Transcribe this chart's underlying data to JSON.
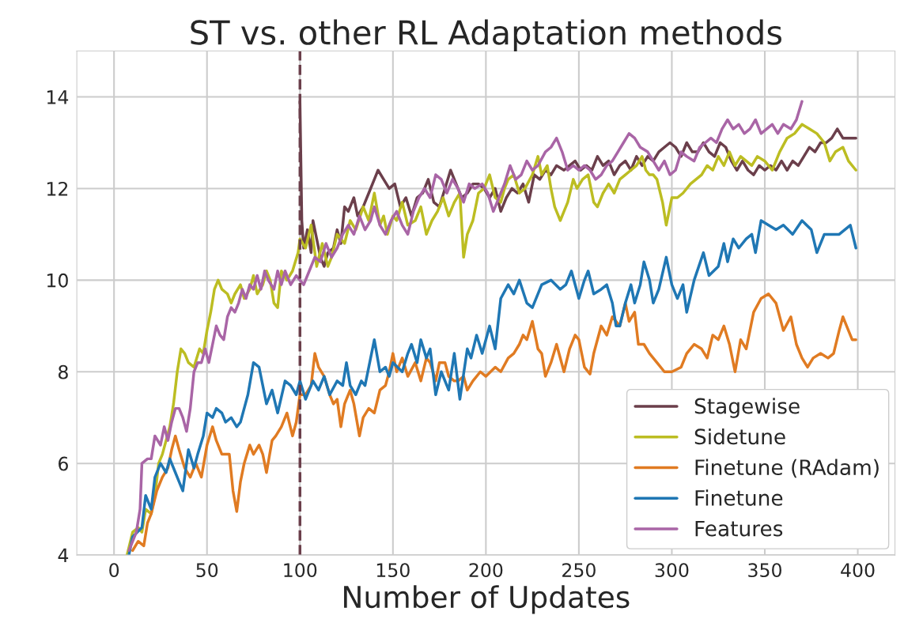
{
  "chart_data": {
    "type": "line",
    "title": "ST vs. other RL Adaptation methods",
    "xlabel": "Number of Updates",
    "xlim": [
      -20,
      420
    ],
    "ylim": [
      4,
      15
    ],
    "xticks": [
      0,
      50,
      100,
      150,
      200,
      250,
      300,
      350,
      400
    ],
    "yticks": [
      4,
      6,
      8,
      10,
      12,
      14
    ],
    "grid": true,
    "legend": "bottom right",
    "line_style": "solid",
    "marker": "none",
    "ref_lines": [
      {
        "axis": "x",
        "value": 100,
        "color": "#6b3f4b",
        "line_style": "dashed"
      }
    ],
    "series": [
      {
        "name": "Stagewise",
        "color": "#6b3f4b",
        "x": [
          100,
          101,
          102,
          104,
          106,
          107,
          109,
          111,
          113,
          115,
          118,
          120,
          122,
          124,
          126,
          129,
          131,
          134,
          137,
          140,
          142,
          145,
          148,
          151,
          154,
          157,
          160,
          163,
          166,
          169,
          172,
          175,
          178,
          181,
          184,
          187,
          190,
          193,
          196,
          199,
          202,
          205,
          208,
          211,
          214,
          217,
          220,
          223,
          226,
          229,
          232,
          235,
          238,
          242,
          245,
          248,
          251,
          254,
          257,
          260,
          263,
          266,
          269,
          272,
          275,
          278,
          281,
          284,
          287,
          290,
          293,
          296,
          299,
          302,
          305,
          308,
          311,
          314,
          317,
          320,
          323,
          326,
          329,
          332,
          335,
          338,
          341,
          344,
          347,
          350,
          353,
          356,
          359,
          362,
          365,
          368,
          371,
          374,
          377,
          380,
          383,
          386,
          389,
          392,
          395,
          398,
          399
        ],
        "values": [
          13.9,
          11.3,
          10.7,
          11.1,
          10.6,
          11.3,
          10.9,
          10.5,
          10.3,
          10.6,
          10.7,
          11.1,
          10.8,
          11.6,
          11.5,
          11.8,
          11.4,
          11.6,
          11.9,
          12.2,
          12.4,
          12.2,
          12.0,
          12.1,
          11.6,
          11.8,
          11.4,
          11.8,
          11.9,
          12.2,
          11.7,
          11.6,
          12.0,
          12.4,
          12.1,
          11.8,
          11.9,
          12.1,
          12.1,
          12.0,
          11.8,
          12.0,
          11.5,
          11.8,
          12.0,
          11.9,
          12.1,
          11.7,
          12.3,
          12.2,
          12.4,
          12.3,
          12.5,
          12.4,
          12.5,
          12.6,
          12.4,
          12.5,
          12.4,
          12.7,
          12.5,
          12.6,
          12.3,
          12.5,
          12.6,
          12.4,
          12.7,
          12.5,
          12.7,
          12.6,
          12.8,
          12.9,
          13.0,
          12.9,
          12.7,
          13.0,
          12.8,
          12.8,
          13.0,
          12.8,
          12.7,
          13.0,
          12.9,
          12.6,
          12.4,
          12.6,
          12.4,
          12.3,
          12.5,
          12.4,
          12.5,
          12.4,
          12.6,
          12.4,
          12.6,
          12.5,
          12.7,
          12.9,
          12.8,
          13.0,
          13.0,
          13.1,
          13.3,
          13.1,
          13.1,
          13.1,
          13.1
        ]
      },
      {
        "name": "Sidetune",
        "color": "#bcbd22",
        "x": [
          7,
          10,
          13,
          15,
          17,
          20,
          22,
          24,
          26,
          30,
          32,
          34,
          36,
          38,
          40,
          43,
          46,
          48,
          50,
          52,
          54,
          56,
          58,
          61,
          63,
          65,
          68,
          70,
          73,
          75,
          77,
          80,
          82,
          84,
          86,
          88,
          90,
          93,
          96,
          99,
          100,
          103,
          106,
          109,
          112,
          115,
          117,
          120,
          124,
          127,
          130,
          134,
          137,
          140,
          143,
          145,
          147,
          150,
          152,
          155,
          158,
          162,
          165,
          168,
          171,
          174,
          177,
          180,
          183,
          186,
          188,
          190,
          193,
          196,
          199,
          202,
          205,
          208,
          210,
          212,
          215,
          218,
          221,
          225,
          228,
          230,
          233,
          235,
          237,
          240,
          242,
          244,
          247,
          249,
          252,
          255,
          258,
          260,
          263,
          266,
          269,
          272,
          275,
          278,
          281,
          284,
          286,
          288,
          290,
          292,
          295,
          297,
          300,
          303,
          306,
          310,
          313,
          316,
          319,
          322,
          325,
          328,
          331,
          334,
          337,
          340,
          343,
          346,
          350,
          354,
          358,
          362,
          366,
          370,
          374,
          378,
          382,
          385,
          388,
          392,
          395,
          399
        ],
        "values": [
          4.0,
          4.5,
          4.6,
          4.5,
          5.0,
          4.9,
          5.3,
          6.0,
          6.2,
          6.8,
          7.3,
          8.0,
          8.5,
          8.4,
          8.2,
          8.1,
          8.5,
          8.4,
          8.9,
          9.3,
          9.8,
          10.0,
          9.8,
          9.7,
          9.5,
          9.7,
          9.9,
          9.6,
          9.8,
          10.1,
          9.7,
          9.9,
          10.2,
          10.0,
          9.5,
          9.4,
          10.2,
          10.0,
          10.2,
          10.6,
          10.9,
          10.7,
          11.2,
          10.3,
          10.8,
          10.3,
          10.5,
          11.0,
          10.8,
          11.3,
          11.1,
          11.6,
          11.3,
          11.9,
          11.2,
          11.4,
          11.0,
          11.4,
          11.3,
          11.7,
          11.2,
          11.3,
          11.6,
          11.0,
          11.3,
          11.5,
          11.8,
          11.4,
          11.7,
          11.9,
          10.5,
          11.0,
          11.3,
          11.9,
          12.0,
          12.3,
          11.8,
          11.7,
          12.0,
          12.2,
          12.3,
          11.9,
          12.0,
          12.3,
          12.7,
          12.3,
          12.5,
          12.0,
          11.6,
          11.3,
          11.5,
          11.7,
          12.2,
          12.0,
          12.2,
          12.3,
          11.7,
          11.6,
          11.9,
          12.1,
          11.9,
          12.2,
          12.3,
          12.4,
          12.5,
          12.7,
          12.4,
          12.3,
          12.3,
          12.2,
          11.7,
          11.2,
          11.8,
          11.8,
          11.9,
          12.1,
          12.2,
          12.3,
          12.5,
          12.4,
          12.7,
          12.5,
          12.8,
          12.5,
          12.7,
          12.6,
          12.5,
          12.7,
          12.6,
          12.4,
          12.8,
          13.1,
          13.2,
          13.4,
          13.3,
          13.2,
          13.0,
          12.6,
          12.8,
          12.9,
          12.6,
          12.4
        ]
      },
      {
        "name": "Finetune (RAdam)",
        "color": "#e07b22",
        "x": [
          10,
          13,
          16,
          18,
          20,
          23,
          26,
          29,
          31,
          33,
          35,
          38,
          41,
          44,
          47,
          50,
          53,
          55,
          58,
          62,
          64,
          66,
          68,
          70,
          73,
          75,
          78,
          80,
          82,
          85,
          87,
          90,
          93,
          96,
          98,
          100,
          103,
          106,
          108,
          110,
          113,
          116,
          118,
          120,
          122,
          124,
          127,
          129,
          132,
          134,
          137,
          140,
          143,
          146,
          148,
          150,
          152,
          155,
          158,
          162,
          165,
          168,
          170,
          173,
          175,
          178,
          180,
          183,
          185,
          188,
          190,
          193,
          197,
          200,
          205,
          208,
          212,
          215,
          218,
          220,
          222,
          225,
          228,
          230,
          232,
          235,
          238,
          242,
          245,
          248,
          250,
          253,
          256,
          258,
          262,
          265,
          268,
          272,
          275,
          277,
          280,
          282,
          285,
          288,
          292,
          296,
          300,
          305,
          308,
          312,
          316,
          319,
          322,
          325,
          328,
          331,
          334,
          337,
          340,
          344,
          348,
          352,
          356,
          360,
          364,
          367,
          370,
          373,
          376,
          380,
          384,
          387,
          390,
          392,
          395,
          397,
          399
        ],
        "values": [
          4.1,
          4.3,
          4.2,
          4.7,
          4.9,
          5.4,
          5.7,
          5.9,
          6.3,
          6.6,
          6.3,
          5.9,
          5.7,
          6.0,
          5.7,
          6.4,
          6.8,
          6.5,
          6.2,
          6.2,
          5.4,
          4.95,
          5.6,
          6.0,
          6.4,
          6.2,
          6.4,
          6.2,
          5.8,
          6.5,
          6.6,
          6.8,
          7.1,
          6.6,
          6.9,
          7.5,
          7.5,
          7.7,
          8.4,
          8.1,
          7.9,
          7.5,
          7.3,
          7.4,
          6.8,
          7.3,
          7.6,
          7.3,
          6.6,
          7.0,
          7.2,
          7.1,
          7.6,
          7.7,
          8.0,
          8.4,
          8.0,
          8.3,
          7.9,
          8.2,
          7.8,
          8.3,
          8.2,
          7.8,
          8.2,
          8.2,
          7.9,
          7.8,
          7.8,
          7.9,
          7.6,
          7.8,
          8.0,
          7.9,
          8.1,
          8.0,
          8.3,
          8.4,
          8.6,
          8.8,
          8.7,
          9.1,
          8.5,
          8.4,
          7.9,
          8.2,
          8.6,
          8.0,
          8.5,
          8.8,
          8.7,
          8.1,
          7.95,
          8.4,
          9.0,
          8.8,
          9.2,
          9.0,
          9.5,
          9.1,
          9.3,
          8.6,
          8.6,
          8.4,
          8.2,
          8.0,
          8.0,
          8.1,
          8.4,
          8.6,
          8.5,
          8.3,
          8.8,
          8.7,
          9.0,
          8.6,
          8.0,
          8.7,
          8.5,
          9.3,
          9.6,
          9.7,
          9.5,
          8.9,
          9.2,
          8.6,
          8.3,
          8.1,
          8.3,
          8.4,
          8.3,
          8.4,
          8.9,
          9.2,
          8.9,
          8.7,
          8.7
        ]
      },
      {
        "name": "Finetune",
        "color": "#1f77b4",
        "x": [
          8,
          10,
          15,
          17,
          20,
          22,
          25,
          28,
          30,
          33,
          35,
          37,
          40,
          43,
          45,
          48,
          50,
          53,
          55,
          58,
          60,
          63,
          66,
          68,
          72,
          75,
          78,
          80,
          82,
          85,
          88,
          92,
          95,
          98,
          100,
          103,
          107,
          110,
          113,
          116,
          120,
          123,
          125,
          127,
          130,
          133,
          135,
          138,
          140,
          143,
          146,
          148,
          150,
          155,
          158,
          160,
          163,
          165,
          168,
          170,
          173,
          176,
          180,
          183,
          186,
          190,
          192,
          195,
          198,
          202,
          205,
          208,
          212,
          215,
          218,
          222,
          225,
          230,
          235,
          240,
          243,
          246,
          250,
          253,
          255,
          258,
          262,
          265,
          268,
          270,
          272,
          275,
          278,
          280,
          283,
          285,
          288,
          290,
          293,
          297,
          300,
          303,
          306,
          308,
          312,
          317,
          320,
          325,
          328,
          330,
          333,
          336,
          340,
          343,
          345,
          348,
          352,
          356,
          360,
          365,
          370,
          375,
          378,
          382,
          386,
          390,
          393,
          396,
          399
        ],
        "values": [
          4.0,
          4.4,
          4.6,
          5.3,
          5.0,
          5.7,
          6.0,
          5.8,
          6.1,
          5.8,
          5.6,
          5.4,
          6.3,
          5.9,
          6.2,
          6.6,
          7.1,
          7.0,
          7.2,
          7.1,
          6.9,
          7.0,
          6.8,
          6.9,
          7.5,
          8.2,
          8.1,
          7.7,
          7.3,
          7.6,
          7.1,
          7.8,
          7.7,
          7.5,
          7.8,
          7.4,
          7.8,
          7.6,
          7.9,
          7.5,
          7.8,
          7.7,
          8.2,
          7.7,
          7.5,
          7.8,
          7.7,
          8.3,
          8.7,
          8.0,
          8.1,
          7.9,
          8.2,
          8.0,
          8.4,
          8.6,
          8.2,
          8.7,
          8.3,
          8.5,
          7.5,
          8.0,
          7.6,
          8.4,
          7.4,
          8.5,
          8.3,
          8.8,
          8.4,
          9.0,
          8.5,
          9.6,
          9.9,
          9.7,
          10.0,
          9.5,
          9.4,
          9.9,
          10.0,
          9.8,
          9.9,
          10.2,
          9.6,
          10.0,
          10.2,
          9.7,
          9.8,
          9.9,
          9.5,
          9.0,
          9.0,
          9.5,
          9.9,
          9.5,
          9.9,
          10.4,
          10.0,
          9.5,
          9.8,
          10.5,
          9.9,
          9.6,
          9.9,
          9.3,
          10.0,
          10.6,
          10.1,
          10.3,
          10.8,
          10.4,
          10.9,
          10.7,
          10.9,
          11.0,
          10.6,
          11.3,
          11.2,
          11.1,
          11.2,
          11.0,
          11.3,
          11.1,
          10.6,
          11.0,
          11.0,
          11.0,
          11.1,
          11.2,
          10.7
        ]
      },
      {
        "name": "Features",
        "color": "#a965a6",
        "x": [
          8,
          12,
          14,
          15,
          18,
          20,
          22,
          25,
          27,
          29,
          31,
          33,
          35,
          37,
          39,
          41,
          43,
          45,
          47,
          49,
          51,
          53,
          55,
          57,
          59,
          61,
          63,
          65,
          67,
          69,
          71,
          73,
          75,
          77,
          79,
          81,
          83,
          86,
          88,
          90,
          92,
          95,
          98,
          100,
          102,
          105,
          108,
          111,
          114,
          117,
          120,
          123,
          126,
          129,
          132,
          135,
          138,
          140,
          143,
          146,
          149,
          152,
          155,
          158,
          161,
          164,
          167,
          170,
          173,
          176,
          179,
          182,
          185,
          188,
          191,
          194,
          198,
          201,
          204,
          207,
          210,
          213,
          216,
          219,
          222,
          225,
          228,
          232,
          235,
          238,
          241,
          244,
          247,
          250,
          253,
          256,
          259,
          262,
          265,
          268,
          271,
          274,
          277,
          280,
          283,
          287,
          290,
          293,
          296,
          299,
          302,
          305,
          308,
          312,
          315,
          318,
          321,
          324,
          327,
          330,
          333,
          336,
          339,
          342,
          345,
          348,
          351,
          354,
          357,
          360,
          364,
          367,
          370
        ],
        "values": [
          4.1,
          4.5,
          5.0,
          6.0,
          6.1,
          6.1,
          6.6,
          6.4,
          6.8,
          6.5,
          6.9,
          7.2,
          7.2,
          7.0,
          6.7,
          7.2,
          8.0,
          8.2,
          8.2,
          8.5,
          8.2,
          8.6,
          9.0,
          8.8,
          8.7,
          9.2,
          9.4,
          9.3,
          9.5,
          9.8,
          9.6,
          9.9,
          9.8,
          10.1,
          9.8,
          10.2,
          10.0,
          9.8,
          10.2,
          9.9,
          10.2,
          9.9,
          10.1,
          10.0,
          9.9,
          10.2,
          10.5,
          10.4,
          10.8,
          10.5,
          10.7,
          11.0,
          11.2,
          11.0,
          11.4,
          11.1,
          11.3,
          11.6,
          11.2,
          11.0,
          11.3,
          11.5,
          11.2,
          11.0,
          11.5,
          11.8,
          12.0,
          11.8,
          12.3,
          12.2,
          11.9,
          12.2,
          12.0,
          11.7,
          12.1,
          12.0,
          12.1,
          11.9,
          11.5,
          11.8,
          12.1,
          12.5,
          12.2,
          12.3,
          12.6,
          12.4,
          12.5,
          12.8,
          12.9,
          13.1,
          12.8,
          12.4,
          12.5,
          12.4,
          12.5,
          12.4,
          12.2,
          12.3,
          12.5,
          12.6,
          12.8,
          13.0,
          13.2,
          13.1,
          12.9,
          12.8,
          12.6,
          12.4,
          12.6,
          12.3,
          12.4,
          12.8,
          12.7,
          12.6,
          12.9,
          13.0,
          13.1,
          13.0,
          13.3,
          13.5,
          13.3,
          13.4,
          13.2,
          13.3,
          13.5,
          13.2,
          13.3,
          13.4,
          13.2,
          13.4,
          13.3,
          13.5,
          13.9
        ]
      }
    ]
  }
}
